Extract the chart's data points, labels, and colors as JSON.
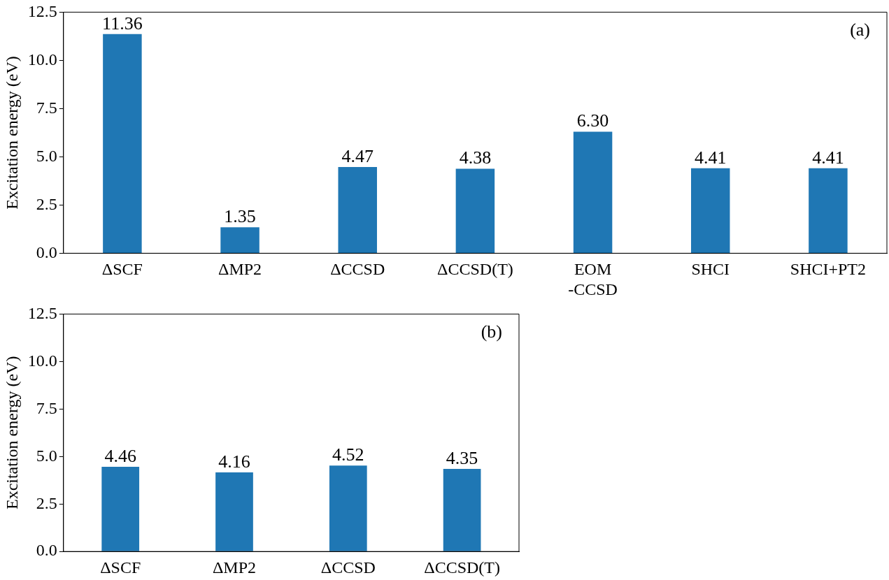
{
  "chart_data": [
    {
      "type": "bar",
      "ylabel": "Excitation energy (eV)",
      "categories": [
        "ΔSCF",
        "ΔMP2",
        "ΔCCSD",
        "ΔCCSD(T)",
        "EOM\n-CCSD",
        "SHCI",
        "SHCI+PT2"
      ],
      "values": [
        11.36,
        1.35,
        4.47,
        4.38,
        6.3,
        4.41,
        4.41
      ],
      "value_labels": [
        "11.36",
        "1.35",
        "4.47",
        "4.38",
        "6.30",
        "4.41",
        "4.41"
      ],
      "color": "#1f77b4",
      "ylim": [
        0,
        12.5
      ],
      "yticks": [
        {
          "value": 0,
          "label": "0.0"
        },
        {
          "value": 2.5,
          "label": "2.5"
        },
        {
          "value": 5,
          "label": "5.0"
        },
        {
          "value": 7.5,
          "label": "7.5"
        },
        {
          "value": 10,
          "label": "10.0"
        },
        {
          "value": 12.5,
          "label": "12.5"
        }
      ],
      "grid": false,
      "legend": false,
      "annotations": [
        "(a)"
      ]
    },
    {
      "type": "bar",
      "ylabel": "Excitation energy (eV)",
      "categories": [
        "ΔSCF",
        "ΔMP2",
        "ΔCCSD",
        "ΔCCSD(T)"
      ],
      "values": [
        4.46,
        4.16,
        4.52,
        4.35
      ],
      "value_labels": [
        "4.46",
        "4.16",
        "4.52",
        "4.35"
      ],
      "color": "#1f77b4",
      "ylim": [
        0,
        12.5
      ],
      "yticks": [
        {
          "value": 0,
          "label": "0.0"
        },
        {
          "value": 2.5,
          "label": "2.5"
        },
        {
          "value": 5,
          "label": "5.0"
        },
        {
          "value": 7.5,
          "label": "7.5"
        },
        {
          "value": 10,
          "label": "10.0"
        },
        {
          "value": 12.5,
          "label": "12.5"
        }
      ],
      "grid": false,
      "legend": false,
      "annotations": [
        "(b)"
      ]
    }
  ]
}
